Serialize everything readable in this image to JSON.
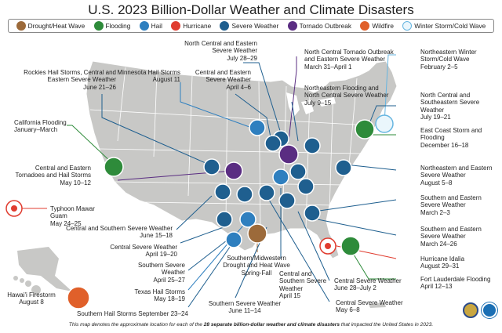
{
  "title": "U.S. 2023 Billion-Dollar Weather and Climate Disasters",
  "legend": [
    {
      "label": "Drought/Heat Wave",
      "icon": "drought-icon",
      "color": "#9c6a3a"
    },
    {
      "label": "Flooding",
      "icon": "flooding-icon",
      "color": "#2e8b3a"
    },
    {
      "label": "Hail",
      "icon": "hail-icon",
      "color": "#2e7fbf"
    },
    {
      "label": "Hurricane",
      "icon": "hurricane-icon",
      "color": "#e03c2f"
    },
    {
      "label": "Severe Weather",
      "icon": "severe-weather-icon",
      "color": "#1f5f8f"
    },
    {
      "label": "Tornado Outbreak",
      "icon": "tornado-icon",
      "color": "#5a2d82"
    },
    {
      "label": "Wildfire",
      "icon": "wildfire-icon",
      "color": "#e0602a"
    },
    {
      "label": "Winter Storm/Cold Wave",
      "icon": "winter-storm-icon",
      "color": "#66b5e0"
    }
  ],
  "labels": {
    "rockies": "Rockies Hail Storms, Central and Eastern Severe Weather\nJune 21–26",
    "minnesota": "Minnesota Hail Storms\nAugust 11",
    "nc_east": "North Central and Eastern Severe Weather\nJuly 28–29",
    "central_east_apr": "Central and Eastern Severe Weather\nApril 4–6",
    "nc_tornado": "North Central Tornado Outbreak and Eastern Severe Weather\nMarch 31–April 1",
    "ne_flood": "Northeastern Flooding and North Central Severe Weather\nJuly 9–15",
    "ne_winter": "Northeastern Winter Storm/Cold Wave\nFebruary 2–5",
    "nc_se": "North Central and Southeastern Severe Weather\nJuly 19–21",
    "east_coast": "East Coast Storm and Flooding\nDecember 16–18",
    "ca_flood": "California Flooding\nJanuary–March",
    "central_tornado": "Central and Eastern Tornadoes and Hail Storms\nMay 10–12",
    "ne_severe": "Northeastern and Eastern Severe Weather\nAugust 5–8",
    "south_east_mar": "Southern and Eastern Severe Weather\nMarch 2–3",
    "typhoon": "Typhoon Mawar Guam\nMay 24–25",
    "central_south_jun": "Central and Southern Severe Weather\nJune 15–18",
    "central_apr19": "Central Severe Weather\nApril 19–20",
    "south_east_mar24": "Southern and Eastern Severe Weather\nMarch 24–26",
    "southern_apr25": "Southern Severe Weather\nApril 25–27",
    "idalia": "Hurricane Idalia\nAugust 29–31",
    "drought": "Southern/Midwestern Drought and Heat Wave\nSpring-Fall",
    "texas_hail": "Texas Hail Storms\nMay 18–19",
    "fll_flood": "Fort Lauderdale Flooding\nApril 12–13",
    "central_jun28": "Central Severe Weather\nJune 28–July 2",
    "hawaii": "Hawai'i Firestorm\nAugust 8",
    "central_southern_apr15": "Central and Southern Severe Weather\nApril 15",
    "central_may6": "Central Severe Weather\nMay 6–8",
    "southern_hail_sep": "Southern Hail Storms September 23–24",
    "southern_jun11": "Southern Severe Weather\nJune 11–14"
  },
  "footnote": {
    "before": "This map denotes the approximate location for each of the ",
    "bold": "28 separate billion-dollar weather and climate disasters",
    "after": " that impacted the United States in 2023."
  }
}
